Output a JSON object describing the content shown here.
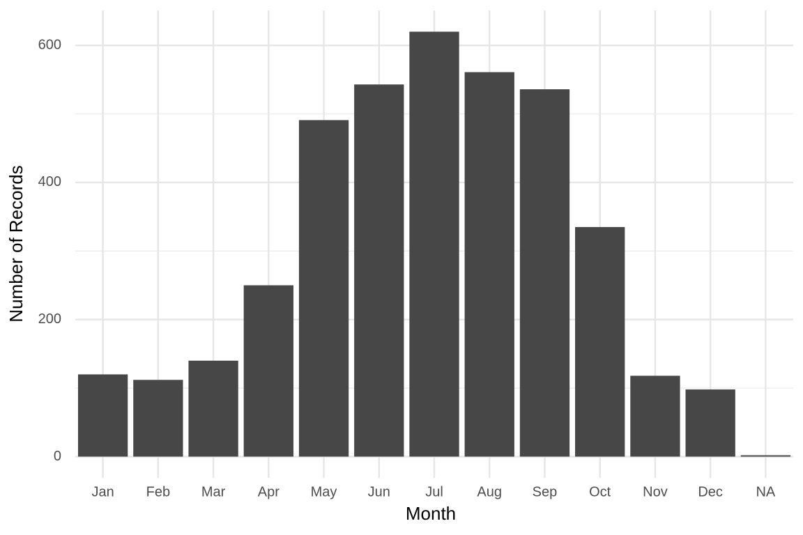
{
  "chart_data": {
    "type": "bar",
    "x_label": "Month",
    "y_label": "Number of Records",
    "categories": [
      "Jan",
      "Feb",
      "Mar",
      "Apr",
      "May",
      "Jun",
      "Jul",
      "Aug",
      "Sep",
      "Oct",
      "Nov",
      "Dec",
      "NA"
    ],
    "values": [
      120,
      112,
      140,
      250,
      491,
      543,
      620,
      561,
      536,
      335,
      118,
      98,
      2
    ],
    "color": "#474747",
    "ylim": [
      -31,
      651
    ],
    "yticks": [
      0,
      200,
      400,
      600
    ],
    "y_minor_grid": [
      100,
      300,
      500
    ],
    "grid": true
  }
}
